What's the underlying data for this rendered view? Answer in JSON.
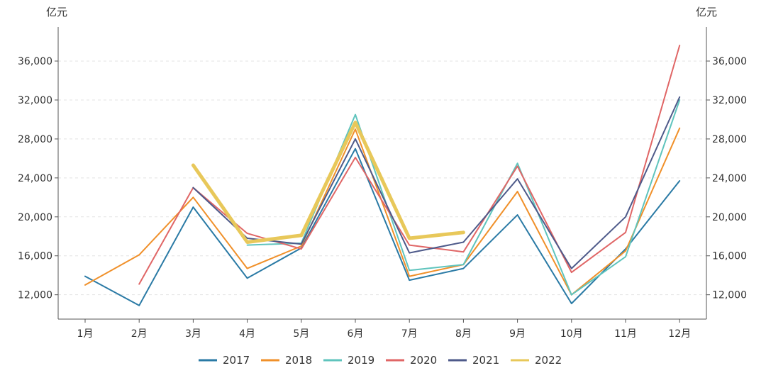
{
  "chart_data": {
    "type": "line",
    "y_unit_left": "亿元",
    "y_unit_right": "亿元",
    "categories": [
      "1月",
      "2月",
      "3月",
      "4月",
      "5月",
      "6月",
      "7月",
      "8月",
      "9月",
      "10月",
      "11月",
      "12月"
    ],
    "y_ticks": [
      "12,000",
      "16,000",
      "20,000",
      "24,000",
      "28,000",
      "32,000",
      "36,000"
    ],
    "y_tick_values": [
      12000,
      16000,
      20000,
      24000,
      28000,
      32000,
      36000
    ],
    "ylim": [
      9500,
      39500
    ],
    "grid": "horizontal-dashed",
    "legend_position": "bottom",
    "series": [
      {
        "name": "2017",
        "color": "#2a7aa5",
        "values": [
          13900,
          10900,
          21000,
          13700,
          16800,
          27000,
          13500,
          14700,
          20200,
          11100,
          16700,
          23700
        ]
      },
      {
        "name": "2018",
        "color": "#f0902a",
        "values": [
          13000,
          16100,
          22000,
          14700,
          17000,
          29000,
          13900,
          15100,
          22600,
          12000,
          16500,
          29100
        ]
      },
      {
        "name": "2019",
        "color": "#5fc4bd",
        "values": [
          null,
          null,
          null,
          17100,
          17300,
          30500,
          14500,
          15100,
          25500,
          12000,
          15900,
          32000
        ]
      },
      {
        "name": "2020",
        "color": "#e06666",
        "values": [
          null,
          13100,
          23000,
          18300,
          16700,
          26100,
          17100,
          16400,
          25200,
          14300,
          18400,
          37600
        ]
      },
      {
        "name": "2021",
        "color": "#4e5a8a",
        "values": [
          null,
          null,
          23000,
          17800,
          17200,
          28000,
          16300,
          17400,
          23900,
          14700,
          20000,
          32300
        ]
      },
      {
        "name": "2022",
        "color": "#e8c85a",
        "values": [
          null,
          null,
          25300,
          17400,
          18100,
          29700,
          17800,
          18400,
          null,
          null,
          null,
          null
        ]
      }
    ]
  }
}
